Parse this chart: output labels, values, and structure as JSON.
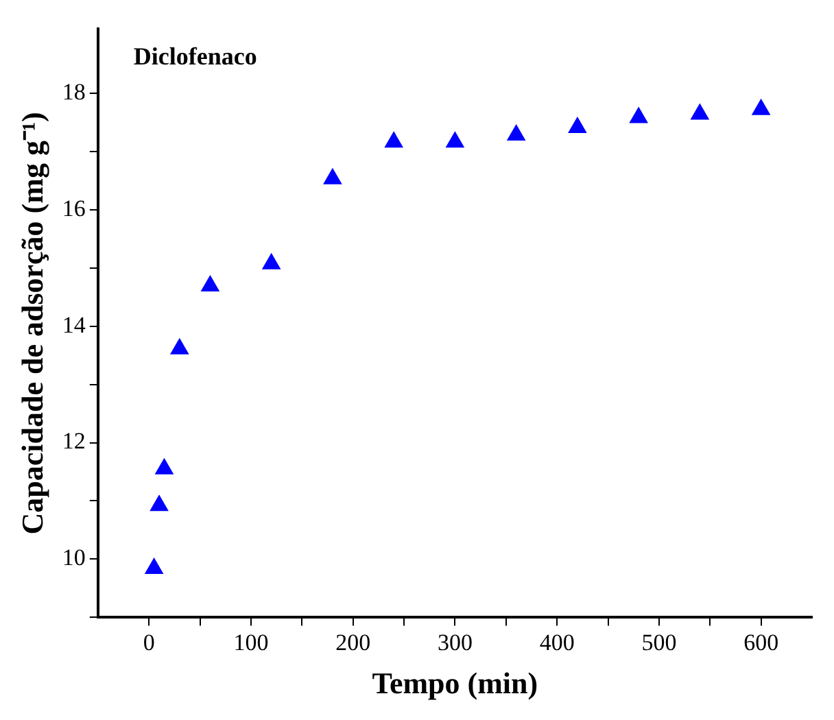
{
  "chart_data": {
    "type": "scatter",
    "xlabel": "Tempo (min)",
    "ylabel": "Capacidade de adsorção (mg g⁻¹)",
    "annotations": [
      "Diclofenaco"
    ],
    "x": [
      5,
      10,
      15,
      30,
      60,
      120,
      180,
      240,
      300,
      360,
      420,
      480,
      540,
      600
    ],
    "series": [
      {
        "color": "#0000ff",
        "values": [
          9.84,
          10.92,
          11.55,
          13.61,
          14.69,
          15.07,
          16.53,
          17.16,
          17.16,
          17.28,
          17.41,
          17.58,
          17.64,
          17.72
        ]
      }
    ],
    "xlim": [
      -50,
      650
    ],
    "ylim": [
      9,
      19.1
    ],
    "xticks": [
      0,
      {
        "value": 50,
        "label": null
      },
      100,
      {
        "value": 150,
        "label": null
      },
      200,
      {
        "value": 250,
        "label": null
      },
      300,
      {
        "value": 350,
        "label": null
      },
      400,
      {
        "value": 450,
        "label": null
      },
      500,
      {
        "value": 550,
        "label": null
      },
      600
    ],
    "yticks": [
      {
        "value": 9,
        "label": null
      },
      10,
      {
        "value": 11,
        "label": null
      },
      12,
      {
        "value": 13,
        "label": null
      },
      14,
      {
        "value": 15,
        "label": null
      },
      16,
      {
        "value": 17,
        "label": null
      },
      18
    ],
    "marker": "triangle",
    "grid": false,
    "legend": false
  }
}
